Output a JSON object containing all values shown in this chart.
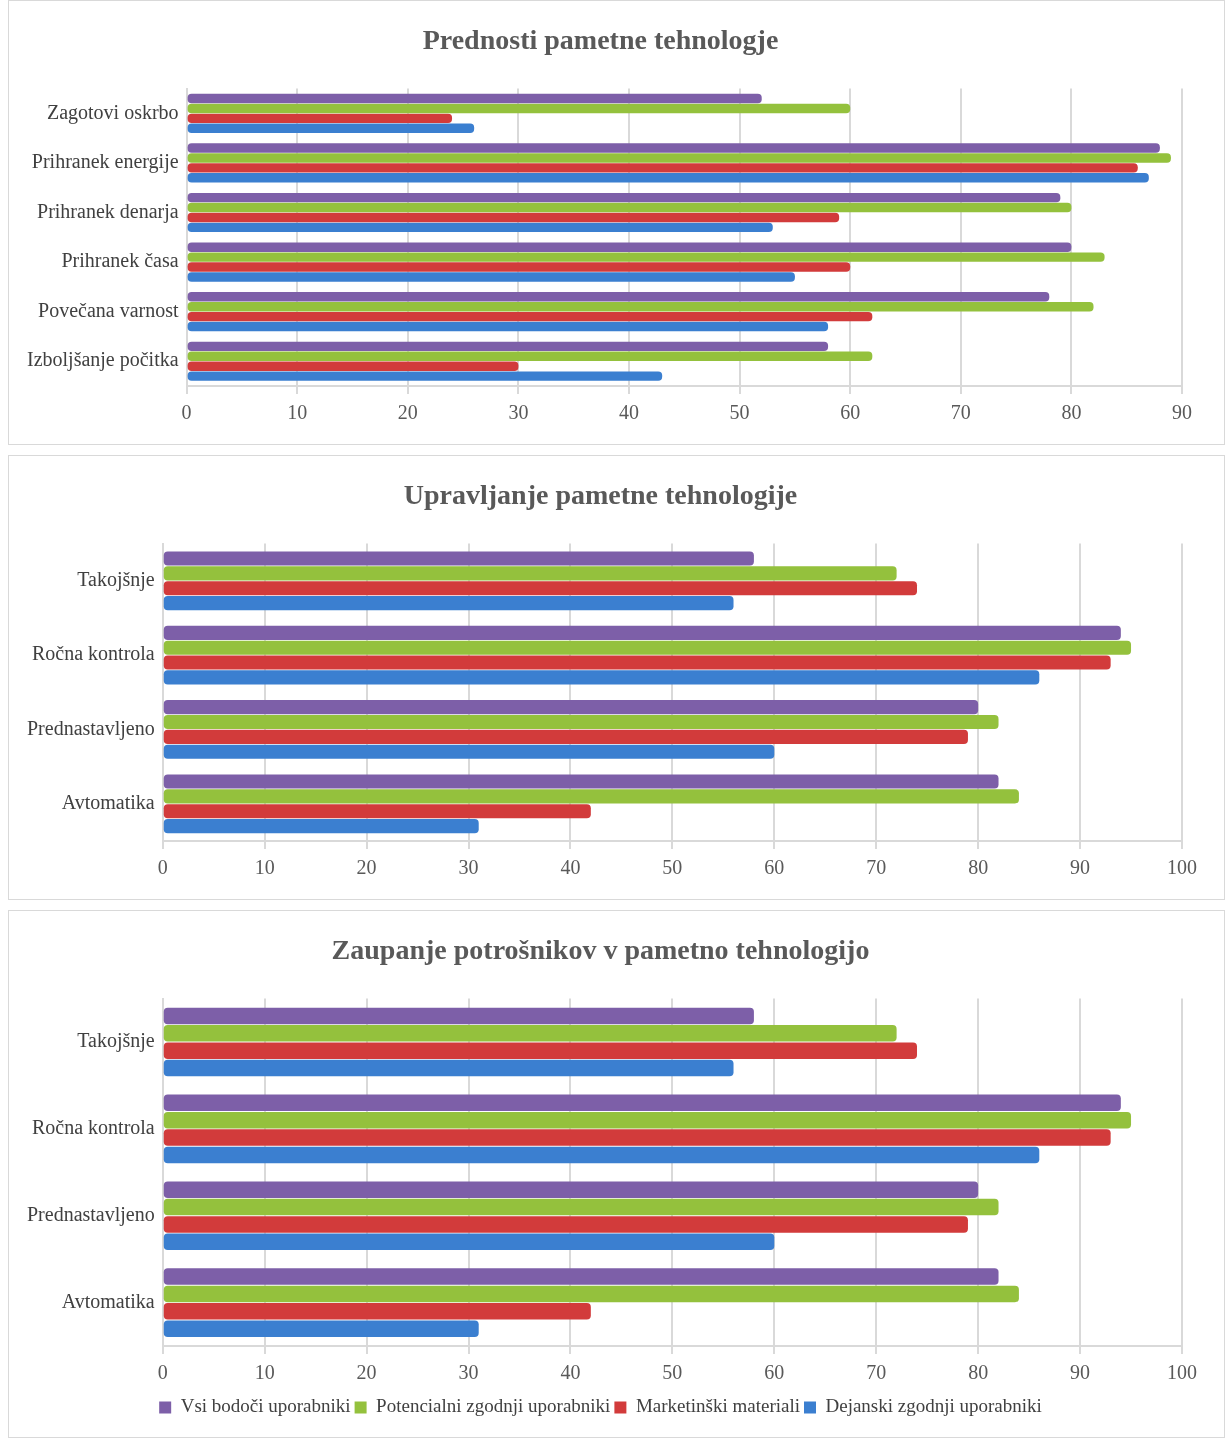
{
  "chart_data": [
    {
      "type": "bar",
      "orientation": "horizontal",
      "title": "Prednosti pametne tehnologje",
      "categories": [
        "Zagotovi oskrbo",
        "Prihranek energije",
        "Prihranek denarja",
        "Prihranek časa",
        "Povečana varnost",
        "Izboljšanje počitka"
      ],
      "series": [
        {
          "color": "#7d5fa8",
          "values": [
            52,
            88,
            79,
            80,
            78,
            58
          ]
        },
        {
          "color": "#94c13d",
          "values": [
            60,
            89,
            80,
            83,
            82,
            62
          ]
        },
        {
          "color": "#d23b3b",
          "values": [
            24,
            86,
            59,
            60,
            62,
            30
          ]
        },
        {
          "color": "#3b7fd0",
          "values": [
            26,
            87,
            53,
            55,
            58,
            43
          ]
        }
      ],
      "xlim": [
        0,
        90
      ],
      "xticks": [
        0,
        10,
        20,
        30,
        40,
        50,
        60,
        70,
        80,
        90
      ],
      "grid": "x"
    },
    {
      "type": "bar",
      "orientation": "horizontal",
      "title": "Upravljanje pametne tehnologije",
      "categories": [
        "Takojšnje",
        "Ročna kontrola",
        "Prednastavljeno",
        "Avtomatika"
      ],
      "series": [
        {
          "color": "#7d5fa8",
          "values": [
            58,
            94,
            80,
            82
          ]
        },
        {
          "color": "#94c13d",
          "values": [
            72,
            95,
            82,
            84
          ]
        },
        {
          "color": "#d23b3b",
          "values": [
            74,
            93,
            79,
            42
          ]
        },
        {
          "color": "#3b7fd0",
          "values": [
            56,
            86,
            60,
            31
          ]
        }
      ],
      "xlim": [
        0,
        100
      ],
      "xticks": [
        0,
        10,
        20,
        30,
        40,
        50,
        60,
        70,
        80,
        90,
        100
      ],
      "grid": "x"
    },
    {
      "type": "bar",
      "orientation": "horizontal",
      "title": "Zaupanje potrošnikov v pametno tehnologijo",
      "categories": [
        "Takojšnje",
        "Ročna kontrola",
        "Prednastavljeno",
        "Avtomatika"
      ],
      "series": [
        {
          "name": "Vsi bodoči uporabniki",
          "color": "#7d5fa8",
          "values": [
            58,
            94,
            80,
            82
          ]
        },
        {
          "name": "Potencialni zgodnji uporabniki",
          "color": "#94c13d",
          "values": [
            72,
            95,
            82,
            84
          ]
        },
        {
          "name": "Marketinški materiali",
          "color": "#d23b3b",
          "values": [
            74,
            93,
            79,
            42
          ]
        },
        {
          "name": "Dejanski zgodnji uporabniki",
          "color": "#3b7fd0",
          "values": [
            56,
            86,
            60,
            31
          ]
        }
      ],
      "xlim": [
        0,
        100
      ],
      "xticks": [
        0,
        10,
        20,
        30,
        40,
        50,
        60,
        70,
        80,
        90,
        100
      ],
      "grid": "x",
      "legend": "bottom"
    }
  ]
}
